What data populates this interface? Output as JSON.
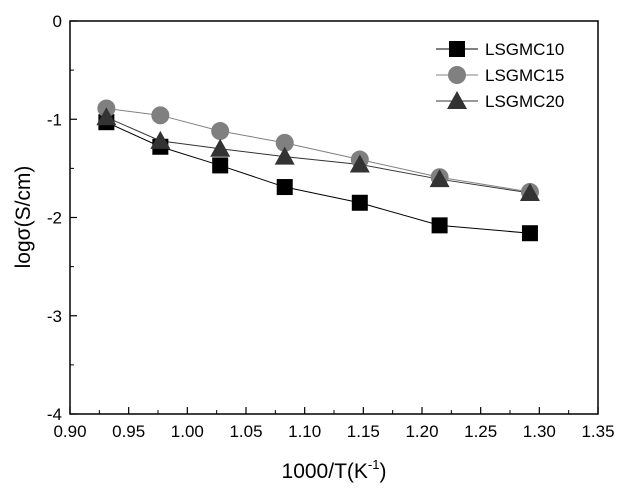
{
  "chart_data": {
    "type": "scatter",
    "xlabel_base": "1000/T(K",
    "xlabel_sup": "-1",
    "xlabel_close": ")",
    "ylabel": "logσ(S/cm)",
    "xlim": [
      0.9,
      1.35
    ],
    "ylim": [
      -4,
      0
    ],
    "xticks": [
      0.9,
      0.95,
      1.0,
      1.05,
      1.1,
      1.15,
      1.2,
      1.25,
      1.3,
      1.35
    ],
    "xtick_labels": [
      "0.90",
      "0.95",
      "1.00",
      "1.05",
      "1.10",
      "1.15",
      "1.20",
      "1.25",
      "1.30",
      "1.35"
    ],
    "yticks": [
      0,
      -1,
      -2,
      -3,
      -4
    ],
    "ytick_labels": [
      "0",
      "-1",
      "-2",
      "-3",
      "-4"
    ],
    "grid": false,
    "legend_position": "top-right",
    "series": [
      {
        "name": "LSGMC10",
        "marker": "square",
        "color": "#000000",
        "line_color": "#000000",
        "x": [
          0.931,
          0.977,
          1.028,
          1.083,
          1.147,
          1.215,
          1.292
        ],
        "y": [
          -1.03,
          -1.28,
          -1.47,
          -1.69,
          -1.85,
          -2.08,
          -2.16
        ]
      },
      {
        "name": "LSGMC15",
        "marker": "circle",
        "color": "#808080",
        "line_color": "#808080",
        "x": [
          0.931,
          0.977,
          1.028,
          1.083,
          1.147,
          1.215,
          1.292
        ],
        "y": [
          -0.89,
          -0.96,
          -1.12,
          -1.24,
          -1.41,
          -1.59,
          -1.74
        ]
      },
      {
        "name": "LSGMC20",
        "marker": "triangle",
        "color": "#333333",
        "line_color": "#333333",
        "x": [
          0.931,
          0.977,
          1.028,
          1.083,
          1.147,
          1.215,
          1.292
        ],
        "y": [
          -0.98,
          -1.22,
          -1.3,
          -1.38,
          -1.46,
          -1.61,
          -1.75
        ]
      }
    ]
  }
}
